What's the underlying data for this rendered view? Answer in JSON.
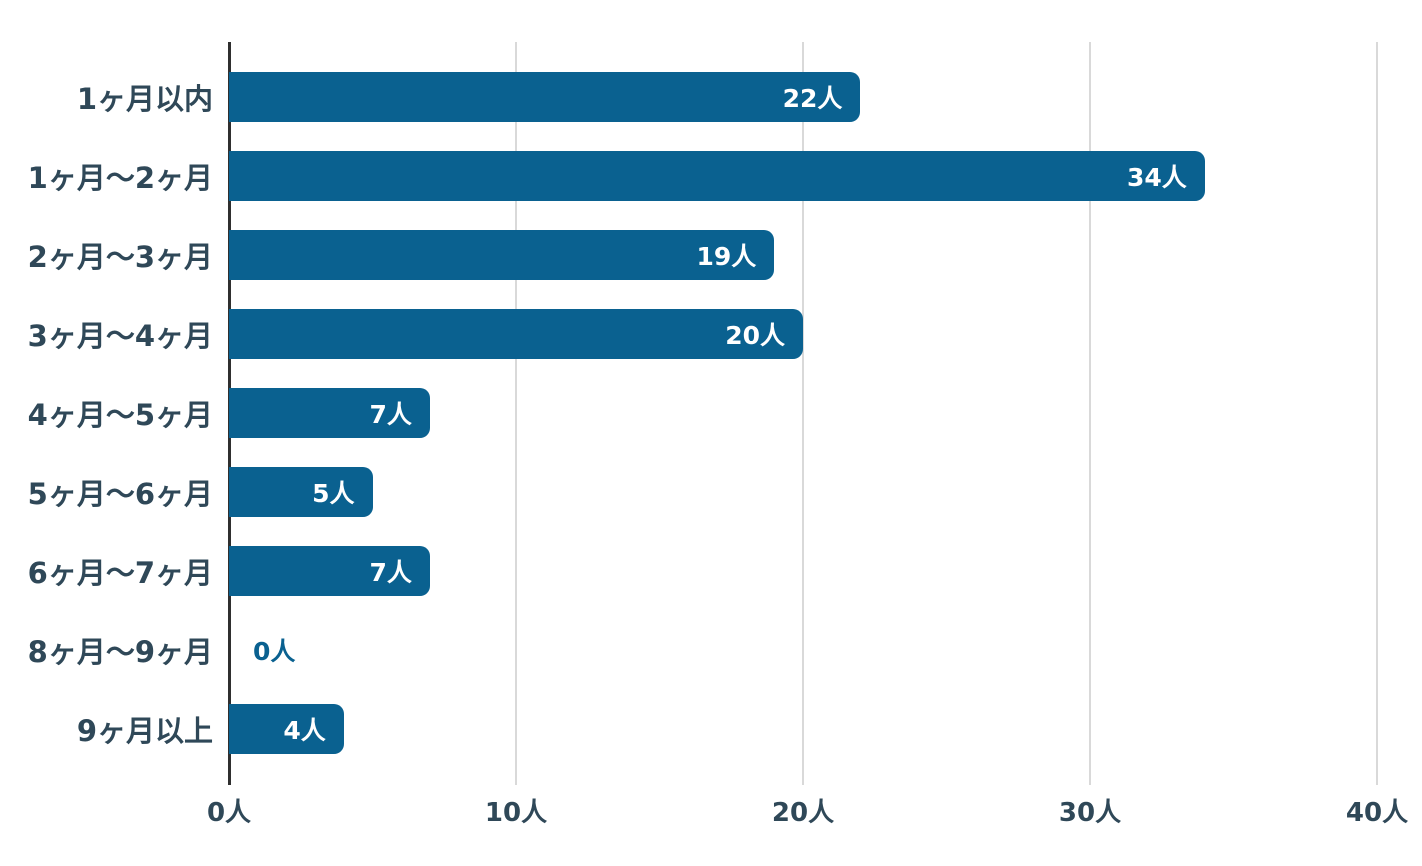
{
  "chart_data": {
    "type": "bar",
    "orientation": "horizontal",
    "title": "",
    "xlabel": "",
    "ylabel": "",
    "categories": [
      "1ヶ月以内",
      "1ヶ月〜2ヶ月",
      "2ヶ月〜3ヶ月",
      "3ヶ月〜4ヶ月",
      "4ヶ月〜5ヶ月",
      "5ヶ月〜6ヶ月",
      "6ヶ月〜7ヶ月",
      "8ヶ月〜9ヶ月",
      "9ヶ月以上"
    ],
    "values": [
      22,
      34,
      19,
      20,
      7,
      5,
      7,
      0,
      4
    ],
    "value_labels": [
      "22人",
      "34人",
      "19人",
      "20人",
      "7人",
      "5人",
      "7人",
      "0人",
      "4人"
    ],
    "x_ticks": [
      "0人",
      "10人",
      "20人",
      "30人",
      "40人"
    ],
    "x_tick_positions_pct": [
      0,
      25,
      50,
      75,
      100
    ],
    "xlim": [
      0,
      40
    ],
    "grid": true,
    "legend": false,
    "colors": {
      "bar": "#0a6190",
      "value_label": "#ffffff",
      "zero_value_label": "#0a6190",
      "category_label": "#2f4858",
      "tick_label": "#2f4858",
      "axis_line": "#2f2f2f",
      "gridline": "#d9d9d9",
      "background": "#ffffff"
    }
  }
}
